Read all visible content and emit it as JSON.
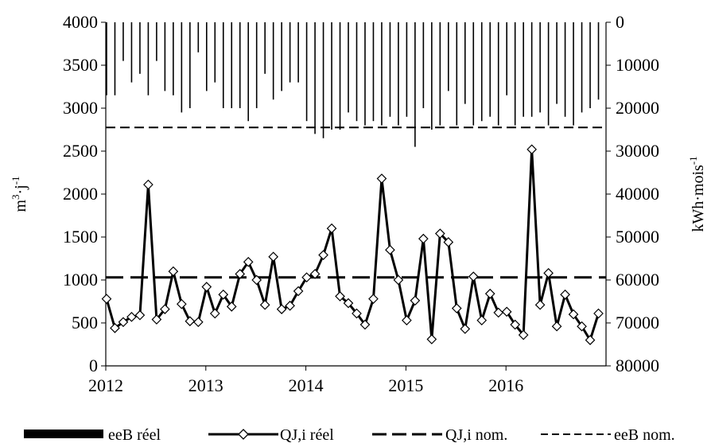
{
  "chart_data": {
    "type": "line",
    "ylabel_left": {
      "base": "m",
      "sup1": "3",
      "mid": "·j",
      "sup2": "-1"
    },
    "ylabel_right": {
      "base": "kWh·mois",
      "sup": "-1"
    },
    "x_ticks": [
      "2012",
      "2013",
      "2014",
      "2015",
      "2016"
    ],
    "y_left_ticks": [
      "0",
      "500",
      "1000",
      "1500",
      "2000",
      "2500",
      "3000",
      "3500",
      "4000"
    ],
    "y_right_ticks": [
      "80000",
      "70000",
      "60000",
      "50000",
      "40000",
      "30000",
      "20000",
      "10000",
      "0"
    ],
    "y_left_range": [
      0,
      4000
    ],
    "y_right_range": [
      80000,
      0
    ],
    "y_right_inverted": true,
    "x_range": [
      "2012-01",
      "2016-12"
    ],
    "legend_position": "bottom",
    "series": [
      {
        "name": "eeB réel",
        "kind": "bar",
        "axis": "right",
        "color": "#000000",
        "dates": [
          "2012-01",
          "2012-02",
          "2012-03",
          "2012-04",
          "2012-05",
          "2012-06",
          "2012-07",
          "2012-08",
          "2012-09",
          "2012-10",
          "2012-11",
          "2012-12",
          "2013-01",
          "2013-02",
          "2013-03",
          "2013-04",
          "2013-05",
          "2013-06",
          "2013-07",
          "2013-08",
          "2013-09",
          "2013-10",
          "2013-11",
          "2013-12",
          "2014-01",
          "2014-02",
          "2014-03",
          "2014-04",
          "2014-05",
          "2014-06",
          "2014-07",
          "2014-08",
          "2014-09",
          "2014-10",
          "2014-11",
          "2014-12",
          "2015-01",
          "2015-02",
          "2015-03",
          "2015-04",
          "2015-05",
          "2015-06",
          "2015-07",
          "2015-08",
          "2015-09",
          "2015-10",
          "2015-11",
          "2015-12",
          "2016-01",
          "2016-02",
          "2016-03",
          "2016-04",
          "2016-05",
          "2016-06",
          "2016-07",
          "2016-08",
          "2016-09",
          "2016-10",
          "2016-11",
          "2016-12"
        ],
        "values": [
          17000,
          17000,
          9000,
          14000,
          12000,
          17000,
          9000,
          16000,
          17000,
          21000,
          20000,
          7000,
          16000,
          14000,
          20000,
          20000,
          20000,
          23000,
          20000,
          12000,
          18000,
          16000,
          14000,
          14000,
          23000,
          26000,
          27000,
          25000,
          25000,
          21000,
          23000,
          24000,
          23000,
          24000,
          22000,
          24000,
          22000,
          29000,
          20000,
          25000,
          24000,
          16000,
          24000,
          19000,
          24000,
          23000,
          22000,
          24000,
          17000,
          24000,
          22000,
          22000,
          21000,
          24000,
          19000,
          22000,
          24000,
          21000,
          20000,
          18000
        ]
      },
      {
        "name": "QJ,i réel",
        "kind": "line-markers",
        "axis": "left",
        "color": "#000000",
        "dates": [
          "2012-01",
          "2012-02",
          "2012-03",
          "2012-04",
          "2012-05",
          "2012-06",
          "2012-07",
          "2012-08",
          "2012-09",
          "2012-10",
          "2012-11",
          "2012-12",
          "2013-01",
          "2013-02",
          "2013-03",
          "2013-04",
          "2013-05",
          "2013-06",
          "2013-07",
          "2013-08",
          "2013-09",
          "2013-10",
          "2013-11",
          "2013-12",
          "2014-01",
          "2014-02",
          "2014-03",
          "2014-04",
          "2014-05",
          "2014-06",
          "2014-07",
          "2014-08",
          "2014-09",
          "2014-10",
          "2014-11",
          "2014-12",
          "2015-01",
          "2015-02",
          "2015-03",
          "2015-04",
          "2015-05",
          "2015-06",
          "2015-07",
          "2015-08",
          "2015-09",
          "2015-10",
          "2015-11",
          "2015-12",
          "2016-01",
          "2016-02",
          "2016-03",
          "2016-04",
          "2016-05",
          "2016-06",
          "2016-07",
          "2016-08",
          "2016-09",
          "2016-10",
          "2016-11",
          "2016-12"
        ],
        "values": [
          780,
          440,
          510,
          570,
          590,
          2110,
          540,
          660,
          1100,
          720,
          520,
          510,
          920,
          610,
          830,
          690,
          1070,
          1210,
          1000,
          710,
          1270,
          660,
          700,
          870,
          1030,
          1070,
          1290,
          1600,
          810,
          730,
          610,
          480,
          780,
          2180,
          1350,
          1000,
          530,
          760,
          1480,
          310,
          1540,
          1440,
          670,
          430,
          1040,
          530,
          840,
          620,
          630,
          480,
          360,
          2520,
          710,
          1080,
          460,
          830,
          600,
          460,
          300,
          610
        ]
      },
      {
        "name": "QJ,i nom.",
        "kind": "long-dash",
        "axis": "left",
        "color": "#000000",
        "value": 1030
      },
      {
        "name": "eeB nom.",
        "kind": "short-dash",
        "axis": "right",
        "color": "#000000",
        "value": 24500
      }
    ]
  }
}
